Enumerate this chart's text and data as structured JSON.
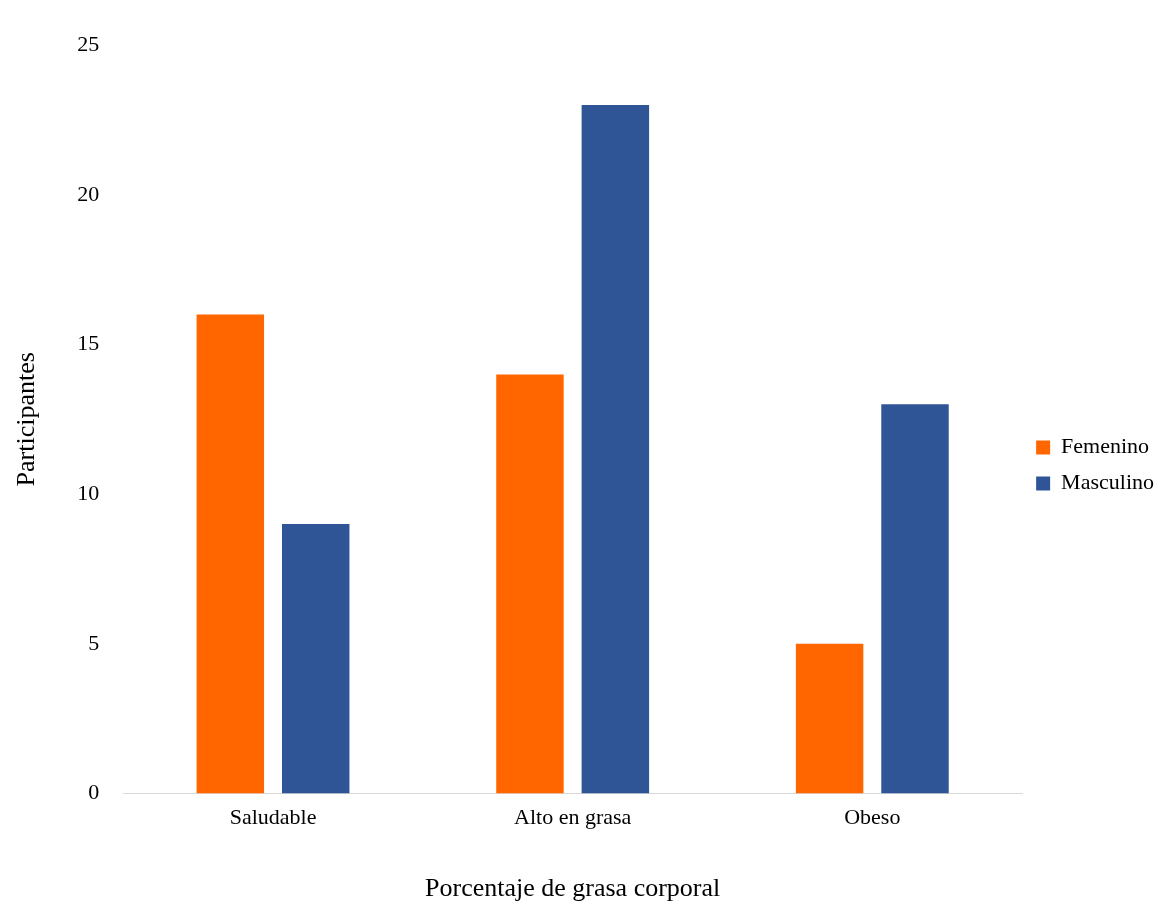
{
  "chart_data": {
    "type": "bar",
    "xlabel": "Porcentaje de grasa corporal",
    "ylabel": "Participantes",
    "categories": [
      "Saludable",
      "Alto en grasa",
      "Obeso"
    ],
    "series": [
      {
        "name": "Femenino",
        "color": "#ff6600",
        "values": [
          16,
          14,
          5
        ]
      },
      {
        "name": "Masculino",
        "color": "#2f5597",
        "values": [
          9,
          23,
          13
        ]
      }
    ],
    "ylim": [
      0,
      25
    ],
    "yticks": [
      0,
      5,
      10,
      15,
      20,
      25
    ],
    "grid": false,
    "legend": "right"
  }
}
